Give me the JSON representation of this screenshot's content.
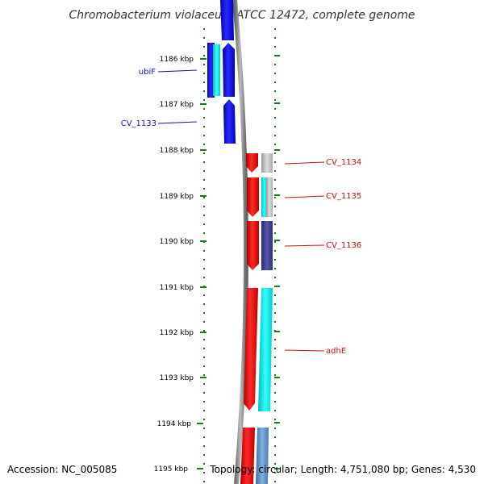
{
  "title": "Chromobacterium violaceum ATCC 12472, complete genome",
  "accession": "Accession: NC_005085",
  "topology": "Topology: circular; Length: 4,751,080 bp; Genes: 4,530",
  "colors": {
    "forward_strand": "#1010ee",
    "reverse_strand": "#ee1010",
    "backbone": "#888888",
    "ruler": "#1a7a1a",
    "cyan": "#22eeee",
    "light_gray": "#bbbbbb",
    "slate_blue": "#3b3b8a",
    "steel_blue": "#5b8ec4"
  },
  "ruler": {
    "unit": "kbp",
    "ticks": [
      "1186 kbp",
      "1187 kbp",
      "1188 kbp",
      "1189 kbp",
      "1190 kbp",
      "1191 kbp",
      "1192 kbp",
      "1193 kbp",
      "1194 kbp",
      "1195 kbp"
    ]
  },
  "labels": {
    "ubiF": "ubiF",
    "CV_1133": "CV_1133",
    "CV_1134": "CV_1134",
    "CV_1135": "CV_1135",
    "CV_1136": "CV_1136",
    "adhE": "adhE"
  }
}
